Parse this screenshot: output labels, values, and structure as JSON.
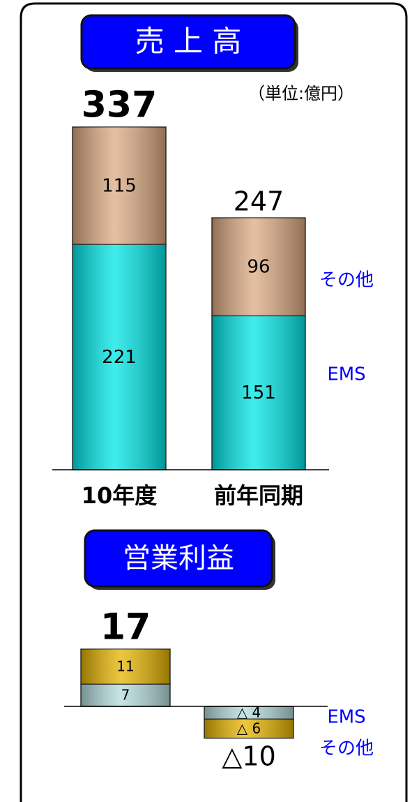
{
  "chart_data": [
    {
      "type": "stacked_bar",
      "title": "売 上 高",
      "unit": "（単位:億円）",
      "categories": [
        "10年度",
        "前年同期"
      ],
      "series": [
        {
          "name": "EMS",
          "color": "#00e6e6",
          "values": [
            221,
            151
          ]
        },
        {
          "name": "その他",
          "color": "#dcaa82",
          "values": [
            115,
            96
          ]
        }
      ],
      "totals": {
        "values": [
          337,
          247
        ]
      }
    },
    {
      "type": "stacked_bar",
      "title": "営業利益",
      "series": [
        {
          "name": "EMS",
          "color": "#b4dcdc",
          "values": [
            7,
            -4
          ],
          "value_labels": [
            "7",
            "△ 4"
          ]
        },
        {
          "name": "その他",
          "color": "#e6b400",
          "values": [
            11,
            -6
          ],
          "value_labels": [
            "11",
            "△ 6"
          ]
        }
      ],
      "totals": {
        "values": [
          17,
          -10
        ],
        "value_labels": [
          "17",
          "△10"
        ]
      }
    }
  ]
}
